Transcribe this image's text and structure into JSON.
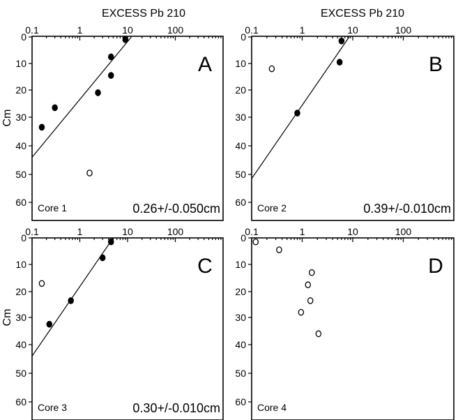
{
  "figure": {
    "x_axis_title": "EXCESS Pb 210",
    "y_axis_title": "Cm"
  },
  "chart_data": [
    {
      "type": "scatter",
      "panel": "A",
      "core_label": "Core 1",
      "annotation": "0.26+/-0.050cm",
      "x_scale": "log",
      "xlim": [
        0.1,
        1000
      ],
      "ylim": [
        0,
        60
      ],
      "y_inverted": true,
      "x_ticks": [
        "0.1",
        "1",
        "10",
        "100"
      ],
      "y_ticks": [
        "0",
        "10",
        "20",
        "30",
        "40",
        "50",
        "60"
      ],
      "points": [
        {
          "x": 9,
          "y": 1,
          "filled": true
        },
        {
          "x": 4.5,
          "y": 7.5,
          "filled": true
        },
        {
          "x": 4.5,
          "y": 14.5,
          "filled": true
        },
        {
          "x": 2.4,
          "y": 21,
          "filled": true
        },
        {
          "x": 0.3,
          "y": 26.5,
          "filled": true
        },
        {
          "x": 0.16,
          "y": 33.5,
          "filled": true
        },
        {
          "x": 1.6,
          "y": 49.5,
          "filled": false
        }
      ],
      "fit_line": [
        {
          "x": 0.1,
          "y": 44
        },
        {
          "x": 12,
          "y": 0
        }
      ]
    },
    {
      "type": "scatter",
      "panel": "B",
      "core_label": "Core 2",
      "annotation": "0.39+/-0.010cm",
      "x_scale": "log",
      "xlim": [
        0.1,
        1000
      ],
      "ylim": [
        0,
        60
      ],
      "y_inverted": true,
      "x_ticks": [
        "0.1",
        "1",
        "10",
        "100"
      ],
      "y_ticks": [
        "0",
        "10",
        "20",
        "30",
        "40",
        "50",
        "60"
      ],
      "points": [
        {
          "x": 6,
          "y": 1.5,
          "filled": true
        },
        {
          "x": 5.5,
          "y": 9.5,
          "filled": true
        },
        {
          "x": 0.25,
          "y": 12,
          "filled": false
        },
        {
          "x": 0.8,
          "y": 28.5,
          "filled": true
        }
      ],
      "fit_line": [
        {
          "x": 0.1,
          "y": 51.5
        },
        {
          "x": 8.5,
          "y": 0
        }
      ]
    },
    {
      "type": "scatter",
      "panel": "C",
      "core_label": "Core 3",
      "annotation": "0.30+/-0.010cm",
      "x_scale": "log",
      "xlim": [
        0.1,
        1000
      ],
      "ylim": [
        0,
        60
      ],
      "y_inverted": true,
      "x_ticks": [
        "0.1",
        "1",
        "10",
        "100"
      ],
      "y_ticks": [
        "0",
        "10",
        "20",
        "30",
        "40",
        "50",
        "60"
      ],
      "points": [
        {
          "x": 4.5,
          "y": 1.5,
          "filled": true
        },
        {
          "x": 3,
          "y": 7.5,
          "filled": true
        },
        {
          "x": 0.16,
          "y": 17,
          "filled": false
        },
        {
          "x": 0.65,
          "y": 23.5,
          "filled": true
        },
        {
          "x": 0.23,
          "y": 32.5,
          "filled": true
        }
      ],
      "fit_line": [
        {
          "x": 0.1,
          "y": 44
        },
        {
          "x": 5,
          "y": 0
        }
      ]
    },
    {
      "type": "scatter",
      "panel": "D",
      "core_label": "Core 4",
      "annotation": "",
      "x_scale": "log",
      "xlim": [
        0.1,
        1000
      ],
      "ylim": [
        0,
        60
      ],
      "y_inverted": true,
      "x_ticks": [
        "0.1",
        "1",
        "10",
        "100"
      ],
      "y_ticks": [
        "0",
        "10",
        "20",
        "30",
        "40",
        "50",
        "60"
      ],
      "points": [
        {
          "x": 0.12,
          "y": 1.5,
          "filled": false
        },
        {
          "x": 0.35,
          "y": 4.5,
          "filled": false
        },
        {
          "x": 1.55,
          "y": 13,
          "filled": false
        },
        {
          "x": 1.3,
          "y": 17.5,
          "filled": false
        },
        {
          "x": 1.45,
          "y": 23.5,
          "filled": false
        },
        {
          "x": 0.95,
          "y": 28,
          "filled": false
        },
        {
          "x": 2.1,
          "y": 36,
          "filled": false
        }
      ],
      "fit_line": null
    }
  ]
}
